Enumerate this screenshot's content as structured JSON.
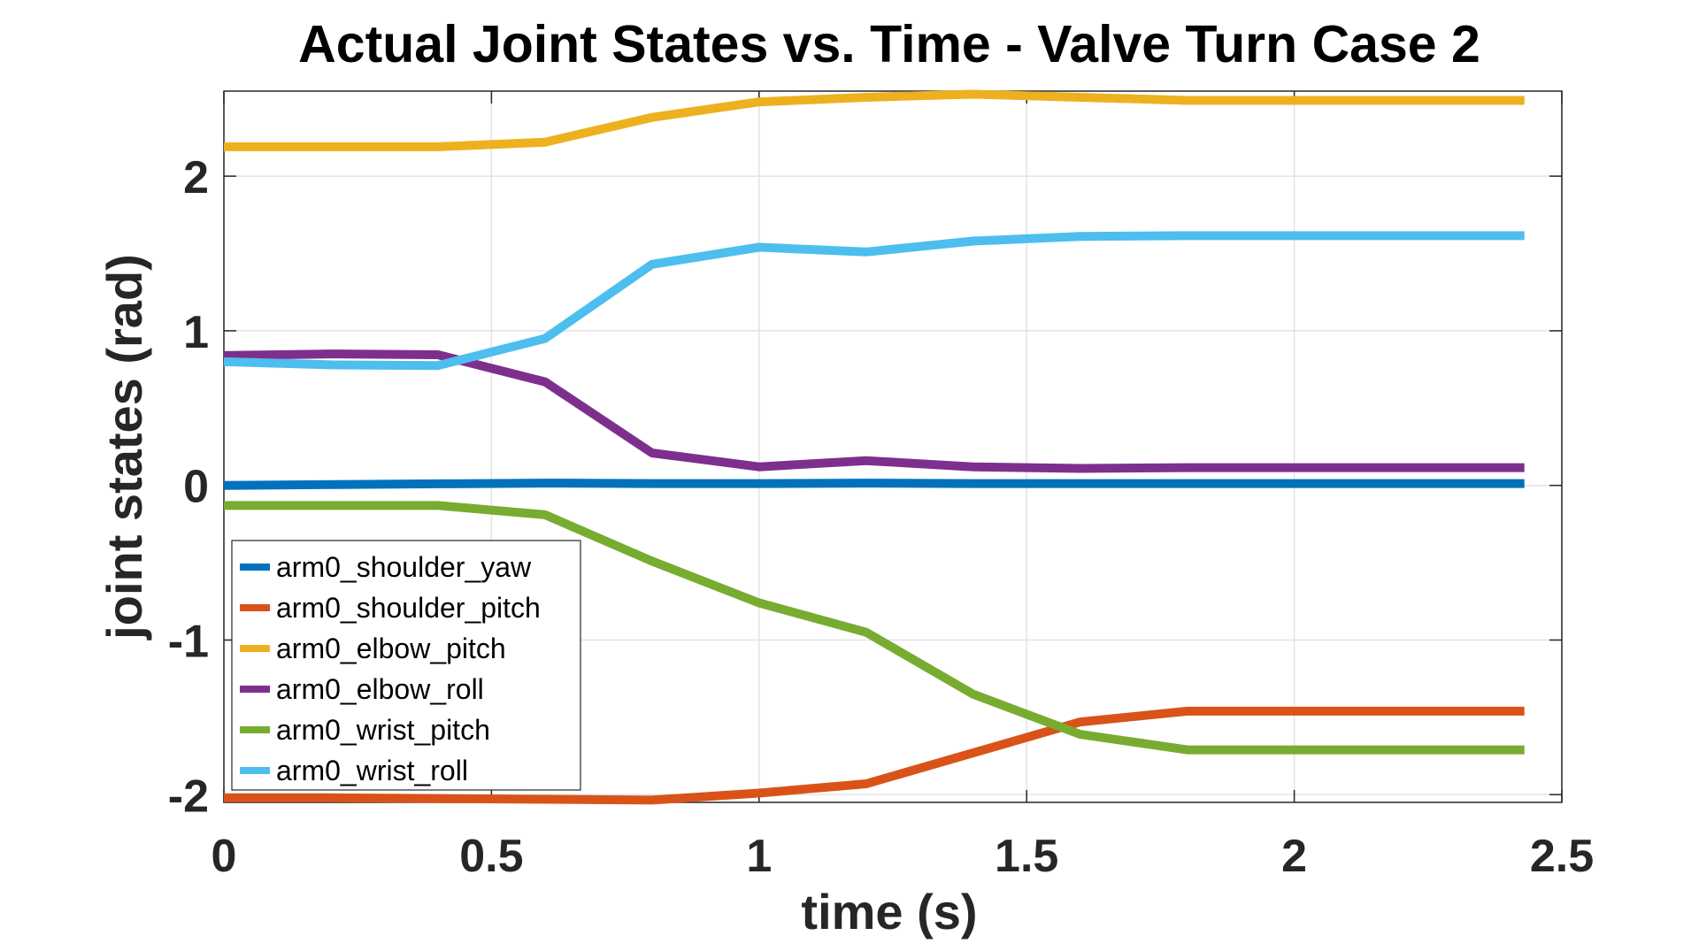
{
  "chart_data": {
    "type": "line",
    "title": "Actual Joint States vs. Time - Valve Turn Case 2",
    "xlabel": "time (s)",
    "ylabel": "joint states (rad)",
    "xlim": [
      0,
      2.5
    ],
    "ylim": [
      -2.05,
      2.55
    ],
    "xticks": [
      0,
      0.5,
      1,
      1.5,
      2,
      2.5
    ],
    "xtick_labels": [
      "0",
      "0.5",
      "1",
      "1.5",
      "2",
      "2.5"
    ],
    "yticks": [
      -2,
      -1,
      0,
      1,
      2
    ],
    "ytick_labels": [
      "-2",
      "-1",
      "0",
      "1",
      "2"
    ],
    "grid": true,
    "legend_position": "bottom-left",
    "x": [
      0,
      0.2,
      0.4,
      0.6,
      0.8,
      1.0,
      1.2,
      1.4,
      1.6,
      1.8,
      2.0,
      2.2,
      2.43
    ],
    "series": [
      {
        "name": "arm0_shoulder_yaw",
        "color": "#0072BD",
        "values": [
          0.0,
          0.005,
          0.01,
          0.015,
          0.012,
          0.012,
          0.015,
          0.012,
          0.012,
          0.012,
          0.012,
          0.012,
          0.012
        ]
      },
      {
        "name": "arm0_shoulder_pitch",
        "color": "#D95319",
        "values": [
          -2.02,
          -2.02,
          -2.025,
          -2.03,
          -2.035,
          -1.99,
          -1.93,
          -1.73,
          -1.53,
          -1.46,
          -1.46,
          -1.46,
          -1.46
        ]
      },
      {
        "name": "arm0_elbow_pitch",
        "color": "#EDB120",
        "values": [
          2.19,
          2.19,
          2.19,
          2.22,
          2.38,
          2.48,
          2.51,
          2.53,
          2.51,
          2.49,
          2.49,
          2.49,
          2.49
        ]
      },
      {
        "name": "arm0_elbow_roll",
        "color": "#7E2F8E",
        "values": [
          0.84,
          0.85,
          0.845,
          0.67,
          0.21,
          0.12,
          0.16,
          0.12,
          0.11,
          0.115,
          0.115,
          0.115,
          0.115
        ]
      },
      {
        "name": "arm0_wrist_pitch",
        "color": "#77AC30",
        "values": [
          -0.13,
          -0.13,
          -0.13,
          -0.19,
          -0.49,
          -0.76,
          -0.95,
          -1.35,
          -1.61,
          -1.71,
          -1.71,
          -1.71,
          -1.71
        ]
      },
      {
        "name": "arm0_wrist_roll",
        "color": "#4DBEEE",
        "values": [
          0.8,
          0.78,
          0.775,
          0.95,
          1.43,
          1.54,
          1.51,
          1.58,
          1.61,
          1.615,
          1.615,
          1.615,
          1.615
        ]
      }
    ]
  }
}
